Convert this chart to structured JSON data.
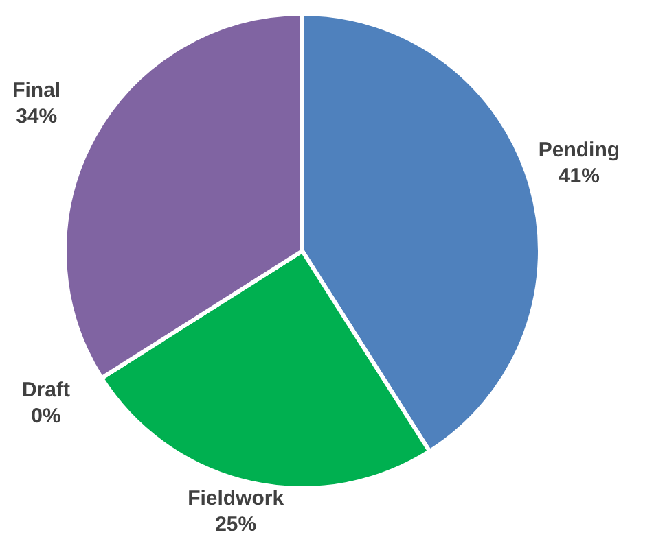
{
  "chart_data": {
    "type": "pie",
    "categories": [
      "Pending",
      "Fieldwork",
      "Draft",
      "Final"
    ],
    "values": [
      41,
      25,
      0,
      34
    ],
    "colors": [
      "#4f81bd",
      "#00b050",
      "#c0504d",
      "#8064a2"
    ],
    "value_labels": [
      "41%",
      "25%",
      "0%",
      "34%"
    ],
    "legend": false
  }
}
